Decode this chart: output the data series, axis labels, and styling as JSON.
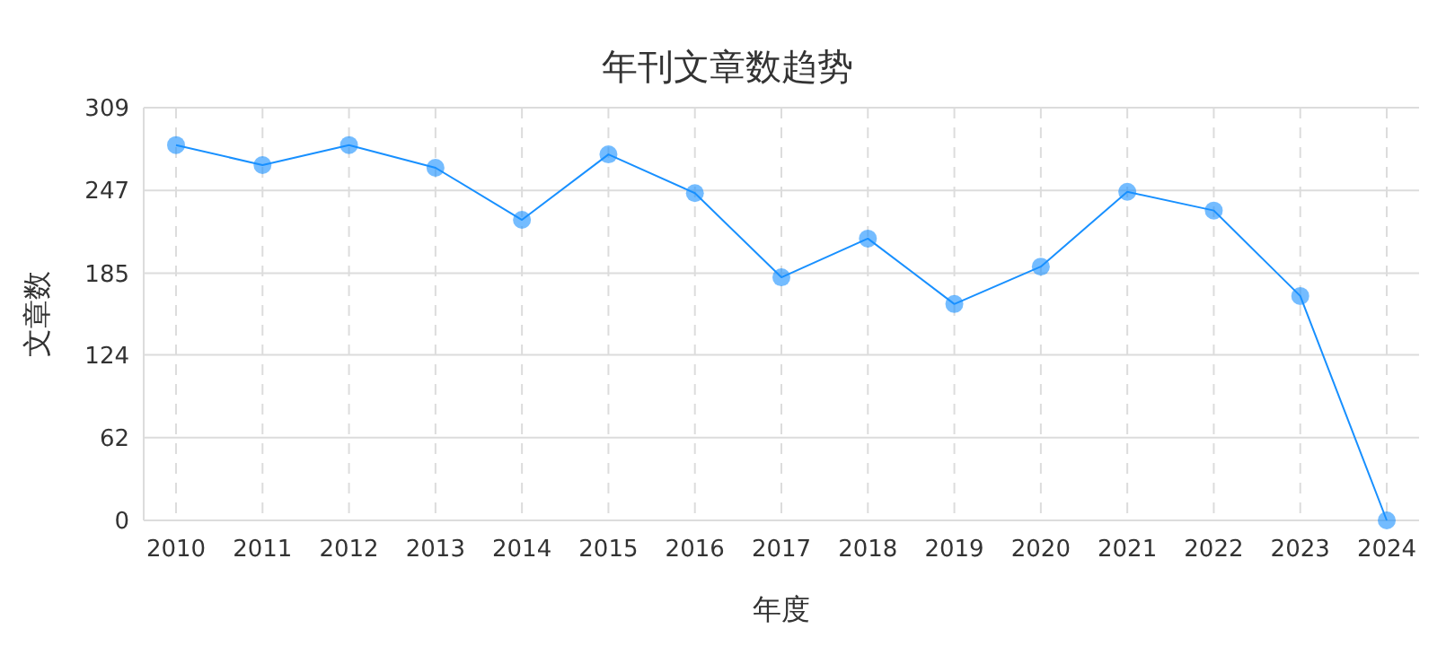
{
  "chart_data": {
    "type": "line",
    "title": "年刊文章数趋势",
    "xlabel": "年度",
    "ylabel": "文章数",
    "categories": [
      "2010",
      "2011",
      "2012",
      "2013",
      "2014",
      "2015",
      "2016",
      "2017",
      "2018",
      "2019",
      "2020",
      "2021",
      "2022",
      "2023",
      "2024"
    ],
    "series": [
      {
        "color": "#1890ff",
        "values": [
          281,
          266,
          281,
          264,
          225,
          274,
          245,
          182,
          211,
          162,
          190,
          246,
          232,
          168,
          0
        ]
      }
    ],
    "ylim": [
      0,
      309
    ],
    "yticks": [
      0,
      62,
      124,
      185,
      247,
      309
    ],
    "grid": true,
    "marker": "circle",
    "line_style": "solid"
  }
}
